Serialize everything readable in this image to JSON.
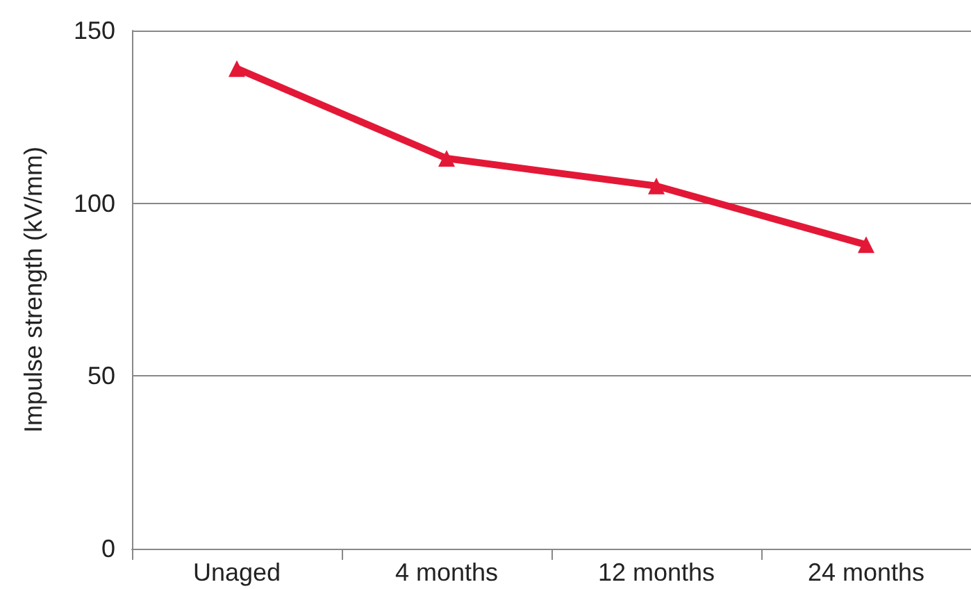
{
  "chart_data": {
    "type": "line",
    "ylabel": "Impulse strength (kV/mm)",
    "categories": [
      "Unaged",
      "4 months",
      "12 months",
      "24 months"
    ],
    "series": [
      {
        "color": "#e31837",
        "values": [
          139,
          113,
          105,
          88
        ]
      }
    ],
    "ylim": [
      0,
      150
    ],
    "yticks": [
      0,
      50,
      100,
      150
    ],
    "grid": "y",
    "marker": "triangle",
    "line_style": "solid"
  }
}
